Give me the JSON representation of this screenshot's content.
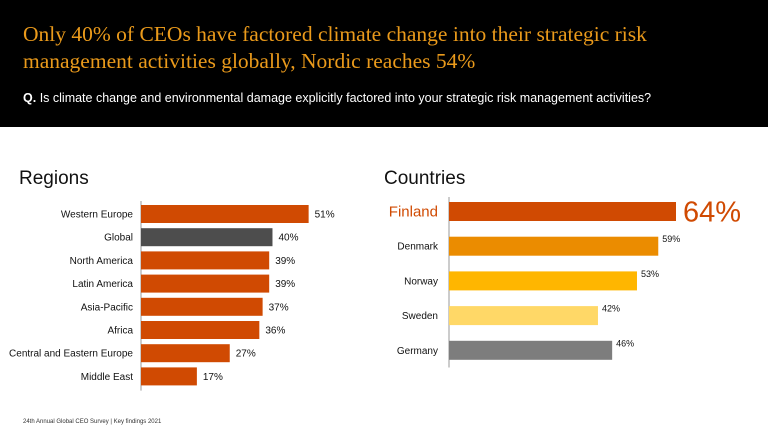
{
  "header": {
    "headline_line1": "Only 40% of CEOs have factored climate change into their strategic risk",
    "headline_line2": "management activities globally, Nordic reaches 54%",
    "question_prefix": "Q.",
    "question_text": "Is climate change and environmental damage explicitly factored into your strategic risk management activities?"
  },
  "footer": {
    "text": "24th Annual Global CEO Survey  |   Key findings 2021"
  },
  "chart_data": [
    {
      "type": "bar",
      "orientation": "horizontal",
      "title": "Regions",
      "categories": [
        "Western Europe",
        "Global",
        "North America",
        "Latin America",
        "Asia-Pacific",
        "Africa",
        "Central and Eastern Europe",
        "Middle East"
      ],
      "values": [
        51,
        40,
        39,
        39,
        37,
        36,
        27,
        17
      ],
      "labels": [
        "51%",
        "40%",
        "39%",
        "39%",
        "37%",
        "36%",
        "27%",
        "17%"
      ],
      "colors": [
        "#d04a02",
        "#4d4d4d",
        "#d04a02",
        "#d04a02",
        "#d04a02",
        "#d04a02",
        "#d04a02",
        "#d04a02"
      ],
      "xlim": [
        0,
        60
      ]
    },
    {
      "type": "bar",
      "orientation": "horizontal",
      "title": "Countries",
      "categories": [
        "Finland",
        "Denmark",
        "Norway",
        "Sweden",
        "Germany"
      ],
      "values": [
        64,
        59,
        53,
        42,
        46
      ],
      "labels": [
        "64%",
        "59%",
        "53%",
        "42%",
        "46%"
      ],
      "colors": [
        "#d04a02",
        "#eb8c00",
        "#ffb600",
        "#ffd867",
        "#7d7d7d"
      ],
      "highlight": "Finland",
      "highlight_color": "#d04a02",
      "xlim": [
        0,
        64
      ]
    }
  ]
}
